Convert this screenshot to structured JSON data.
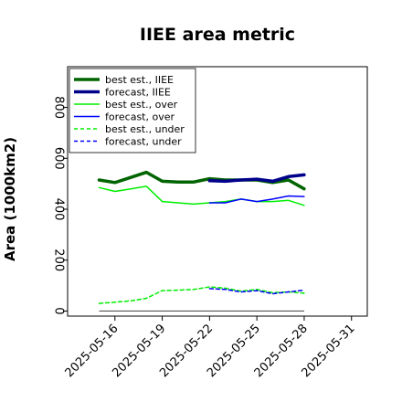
{
  "chart_data": {
    "type": "line",
    "title": "IIEE area metric",
    "xlabel": "",
    "ylabel": "Area (1000km2)",
    "ylim": [
      -20,
      960
    ],
    "xlim": [
      "2025-05-13",
      "2025-06-01"
    ],
    "grid": false,
    "legend_position": "top-left",
    "y_ticks": [
      "0",
      "200",
      "400",
      "600",
      "800"
    ],
    "x_ticks": [
      "2025-05-16",
      "2025-05-19",
      "2025-05-22",
      "2025-05-25",
      "2025-05-28",
      "2025-05-31"
    ],
    "highlighted_x_tick": "2025-05-22",
    "highlight_color": "#2e8b2e",
    "zero_line": true,
    "series": [
      {
        "name": "best est., IIEE",
        "color": "#006400",
        "style": "solid",
        "width": "thick",
        "x": [
          "2025-05-15",
          "2025-05-16",
          "2025-05-17",
          "2025-05-18",
          "2025-05-19",
          "2025-05-20",
          "2025-05-21",
          "2025-05-22",
          "2025-05-23",
          "2025-05-24",
          "2025-05-25",
          "2025-05-26",
          "2025-05-27",
          "2025-05-28"
        ],
        "values": [
          515,
          505,
          525,
          545,
          510,
          507,
          507,
          520,
          515,
          515,
          515,
          505,
          515,
          480
        ]
      },
      {
        "name": "forecast, IIEE",
        "color": "#00008b",
        "style": "solid",
        "width": "thick",
        "x": [
          "2025-05-22",
          "2025-05-23",
          "2025-05-24",
          "2025-05-25",
          "2025-05-26",
          "2025-05-27",
          "2025-05-28"
        ],
        "values": [
          512,
          510,
          515,
          518,
          510,
          528,
          535
        ]
      },
      {
        "name": "best est., over",
        "color": "#00ee00",
        "style": "solid",
        "width": "thin",
        "x": [
          "2025-05-15",
          "2025-05-16",
          "2025-05-17",
          "2025-05-18",
          "2025-05-19",
          "2025-05-20",
          "2025-05-21",
          "2025-05-22",
          "2025-05-23",
          "2025-05-24",
          "2025-05-25",
          "2025-05-26",
          "2025-05-27",
          "2025-05-28"
        ],
        "values": [
          485,
          470,
          480,
          490,
          430,
          425,
          420,
          425,
          430,
          440,
          430,
          430,
          435,
          415
        ]
      },
      {
        "name": "forecast, over",
        "color": "#0000ff",
        "style": "solid",
        "width": "thin",
        "x": [
          "2025-05-22",
          "2025-05-23",
          "2025-05-24",
          "2025-05-25",
          "2025-05-26",
          "2025-05-27",
          "2025-05-28"
        ],
        "values": [
          425,
          425,
          440,
          430,
          440,
          452,
          450
        ]
      },
      {
        "name": "best est., under",
        "color": "#00ee00",
        "style": "dashed",
        "width": "thin",
        "x": [
          "2025-05-15",
          "2025-05-16",
          "2025-05-17",
          "2025-05-18",
          "2025-05-19",
          "2025-05-20",
          "2025-05-21",
          "2025-05-22",
          "2025-05-23",
          "2025-05-24",
          "2025-05-25",
          "2025-05-26",
          "2025-05-27",
          "2025-05-28"
        ],
        "values": [
          30,
          35,
          40,
          50,
          80,
          82,
          85,
          95,
          90,
          78,
          85,
          72,
          75,
          70
        ]
      },
      {
        "name": "forecast, under",
        "color": "#0000ff",
        "style": "dashed",
        "width": "thin",
        "x": [
          "2025-05-22",
          "2025-05-23",
          "2025-05-24",
          "2025-05-25",
          "2025-05-26",
          "2025-05-27",
          "2025-05-28"
        ],
        "values": [
          88,
          85,
          75,
          80,
          68,
          75,
          82
        ]
      }
    ]
  }
}
